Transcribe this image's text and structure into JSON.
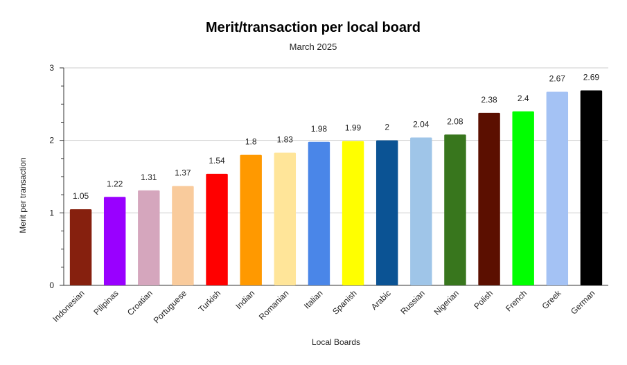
{
  "chart_data": {
    "type": "bar",
    "title": "Merit/transaction per local board",
    "subtitle": "March 2025",
    "xlabel": "Local Boards",
    "ylabel": "Merit per transaction",
    "ylim": [
      0,
      3
    ],
    "yticks": [
      "0",
      "1",
      "2",
      "3"
    ],
    "grid": true,
    "legend": "none",
    "categories": [
      "Indonesian",
      "Pilipinas",
      "Croatian",
      "Portuguese",
      "Turkish",
      "Indian",
      "Romanian",
      "Italian",
      "Spanish",
      "Arabic",
      "Russian",
      "Nigerian",
      "Polish",
      "French",
      "Greek",
      "German"
    ],
    "values": [
      1.05,
      1.22,
      1.31,
      1.37,
      1.54,
      1.8,
      1.83,
      1.98,
      1.99,
      2,
      2.04,
      2.08,
      2.38,
      2.4,
      2.67,
      2.69
    ],
    "value_labels": [
      "1.05",
      "1.22",
      "1.31",
      "1.37",
      "1.54",
      "1.8",
      "1.83",
      "1.98",
      "1.99",
      "2",
      "2.04",
      "2.08",
      "2.38",
      "2.4",
      "2.67",
      "2.69"
    ],
    "colors": [
      "#86200e",
      "#9900ff",
      "#d5a6bd",
      "#f9cb9c",
      "#ff0000",
      "#ff9900",
      "#ffe599",
      "#4a86e8",
      "#ffff00",
      "#0b5394",
      "#9fc5e8",
      "#38761d",
      "#5b0f00",
      "#00ff00",
      "#a4c2f4",
      "#000000"
    ]
  }
}
